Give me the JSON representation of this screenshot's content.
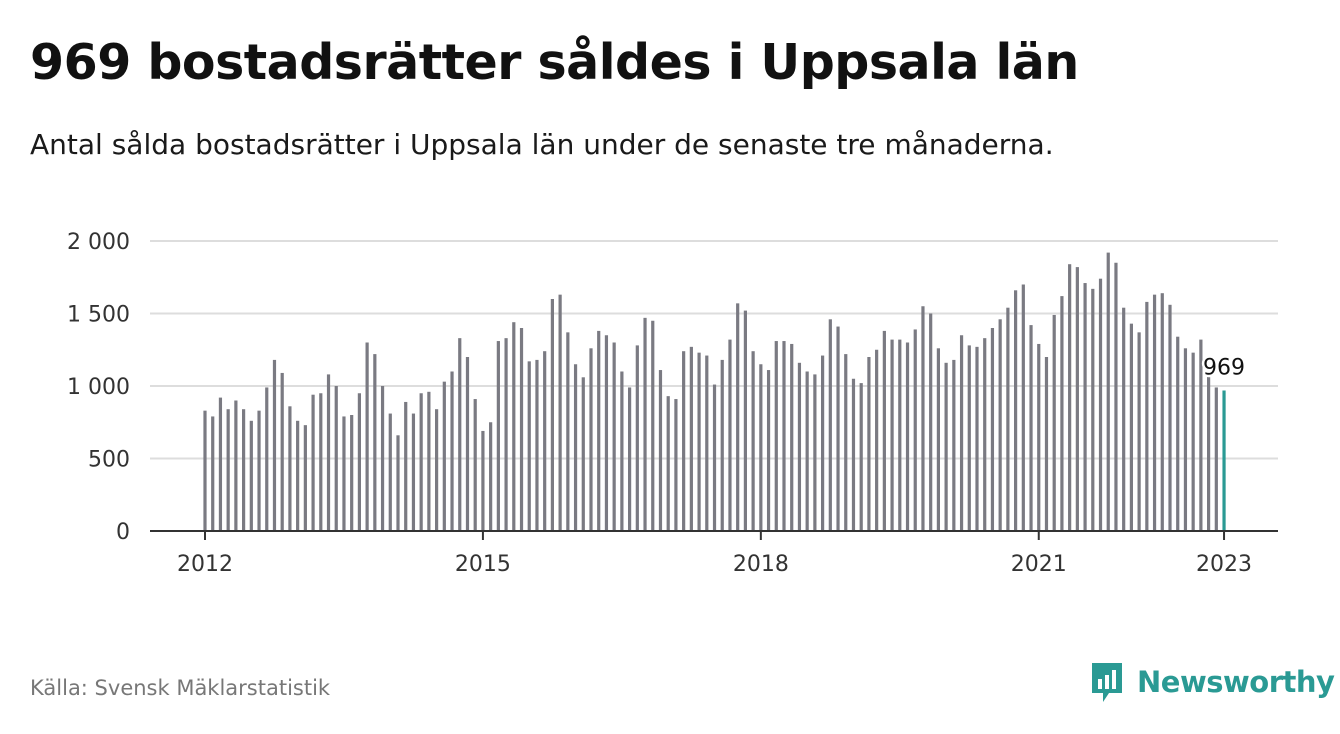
{
  "title": "969 bostadsrätter såldes i Uppsala län",
  "subtitle": "Antal sålda bostadsrätter i Uppsala län under de senaste tre månaderna.",
  "source": "Källa: Svensk Mäklarstatistik",
  "brand": {
    "name": "Newsworthy",
    "icon": "newsworthy-logo-icon"
  },
  "colors": {
    "bar": "#7a7a82",
    "highlight": "#2a9a94",
    "grid": "#dddddd",
    "axis": "#333333",
    "brand": "#2a9a94"
  },
  "chart_data": {
    "type": "bar",
    "x_start": "2012-01",
    "x_ticks": [
      "2012",
      "2015",
      "2018",
      "2021",
      "2023"
    ],
    "y_ticks": [
      "0",
      "500",
      "1 000",
      "1 500",
      "2 000"
    ],
    "ylim": [
      0,
      2000
    ],
    "grid": true,
    "highlight_label": "969",
    "values": [
      830,
      790,
      920,
      840,
      900,
      840,
      760,
      830,
      990,
      1180,
      1090,
      860,
      760,
      730,
      940,
      950,
      1080,
      1000,
      790,
      800,
      950,
      1300,
      1220,
      1000,
      810,
      660,
      890,
      810,
      950,
      960,
      840,
      1030,
      1100,
      1330,
      1200,
      910,
      690,
      750,
      1310,
      1330,
      1440,
      1400,
      1170,
      1180,
      1240,
      1600,
      1630,
      1370,
      1150,
      1060,
      1260,
      1380,
      1350,
      1300,
      1100,
      990,
      1280,
      1470,
      1450,
      1110,
      930,
      910,
      1240,
      1270,
      1230,
      1210,
      1010,
      1180,
      1320,
      1570,
      1520,
      1240,
      1150,
      1110,
      1310,
      1310,
      1290,
      1160,
      1100,
      1080,
      1210,
      1460,
      1410,
      1220,
      1050,
      1020,
      1200,
      1250,
      1380,
      1320,
      1320,
      1300,
      1390,
      1550,
      1500,
      1260,
      1160,
      1180,
      1350,
      1280,
      1270,
      1330,
      1400,
      1460,
      1540,
      1660,
      1700,
      1420,
      1290,
      1200,
      1490,
      1620,
      1840,
      1820,
      1710,
      1670,
      1740,
      1920,
      1850,
      1540,
      1430,
      1370,
      1580,
      1630,
      1640,
      1560,
      1340,
      1260,
      1230,
      1320,
      1130,
      990,
      969
    ]
  }
}
